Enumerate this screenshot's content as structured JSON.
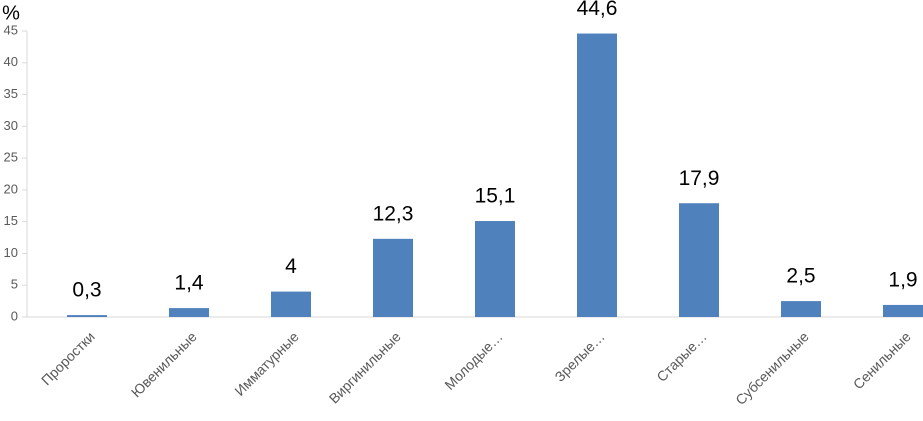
{
  "chart_data": {
    "type": "bar",
    "y_label": "%",
    "categories": [
      "Проростки",
      "Ювенильные",
      "Имматурные",
      "Виргинильные",
      "Молодые…",
      "Зрелые…",
      "Старые…",
      "Субсенильные",
      "Сенильные"
    ],
    "values": [
      0.3,
      1.4,
      4,
      12.3,
      15.1,
      44.6,
      17.9,
      2.5,
      1.9
    ],
    "value_labels": [
      "0,3",
      "1,4",
      "4",
      "12,3",
      "15,1",
      "44,6",
      "17,9",
      "2,5",
      "1,9"
    ],
    "color": "#4f81bd",
    "ylim": [
      0,
      45
    ],
    "yticks": [
      0,
      5,
      10,
      15,
      20,
      25,
      30,
      35,
      40,
      45
    ],
    "grid": false
  }
}
